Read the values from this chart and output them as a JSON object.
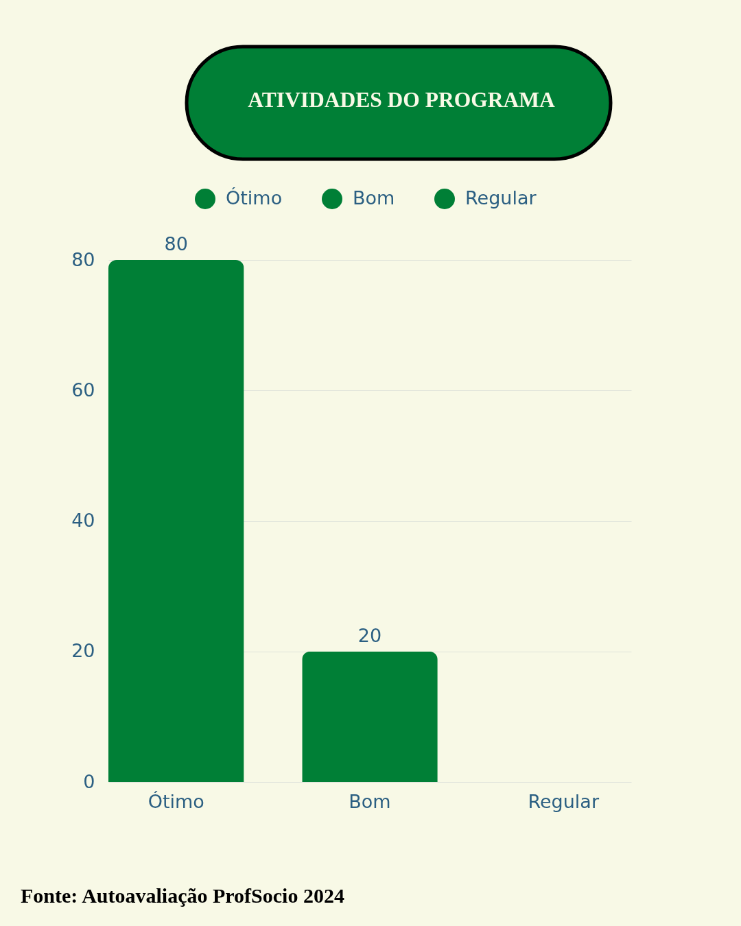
{
  "chart_data": {
    "type": "bar",
    "title": "ATIVIDADES DO PROGRAMA",
    "stacked": true,
    "categories": [
      "Ótimo",
      "Bom",
      "Regular"
    ],
    "series": [
      {
        "name": "Ótimo",
        "color": "#007f36",
        "values": [
          80,
          null,
          null
        ],
        "value_labels": [
          "80",
          null,
          null
        ]
      },
      {
        "name": "Bom",
        "color": "#007f36",
        "values": [
          null,
          20,
          null
        ],
        "value_labels": [
          null,
          "20",
          null
        ]
      },
      {
        "name": "Regular",
        "color": "#007f36",
        "values": [
          null,
          null,
          0
        ],
        "value_labels": [
          null,
          null,
          null
        ]
      }
    ],
    "ylim": [
      0,
      80
    ],
    "yticks": [
      0,
      20,
      40,
      60,
      80
    ],
    "grid": "y",
    "legend": "top",
    "annotations": [
      "Fonte: Autoavaliação ProfSocio 2024"
    ]
  }
}
